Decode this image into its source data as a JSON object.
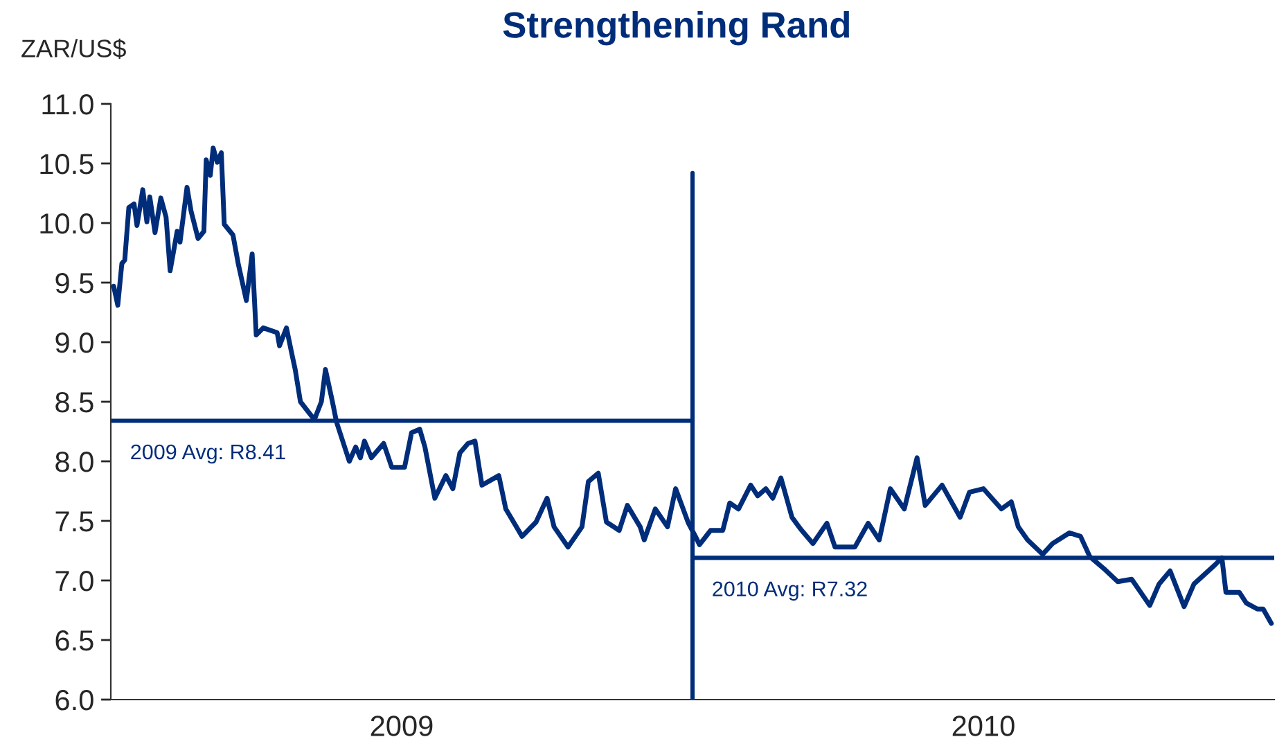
{
  "chart_data": {
    "type": "line",
    "title": "Strengthening Rand",
    "ylabel": "ZAR/US$",
    "xlim": [
      2009.0,
      2011.0
    ],
    "xticks": [
      {
        "value": 2009.5,
        "label": "2009"
      },
      {
        "value": 2010.5,
        "label": "2010"
      }
    ],
    "ylim": [
      6.0,
      11.0
    ],
    "yticks": [
      {
        "value": 6.0,
        "label": "6.0"
      },
      {
        "value": 6.5,
        "label": "6.5"
      },
      {
        "value": 7.0,
        "label": "7.0"
      },
      {
        "value": 7.5,
        "label": "7.5"
      },
      {
        "value": 8.0,
        "label": "8.0"
      },
      {
        "value": 8.5,
        "label": "8.5"
      },
      {
        "value": 9.0,
        "label": "9.0"
      },
      {
        "value": 9.5,
        "label": "9.5"
      },
      {
        "value": 10.0,
        "label": "10.0"
      },
      {
        "value": 10.5,
        "label": "10.5"
      },
      {
        "value": 11.0,
        "label": "11.0"
      }
    ],
    "grid": false,
    "legend": false,
    "marker": "none",
    "line_style": "solid",
    "series": [
      {
        "color": "#002d7a",
        "x": [
          2009.005,
          2009.012,
          2009.019,
          2009.024,
          2009.031,
          2009.04,
          2009.045,
          2009.055,
          2009.062,
          2009.067,
          2009.076,
          2009.086,
          2009.095,
          2009.102,
          2009.114,
          2009.119,
          2009.131,
          2009.138,
          2009.15,
          2009.16,
          2009.164,
          2009.171,
          2009.176,
          2009.183,
          2009.19,
          2009.195,
          2009.21,
          2009.219,
          2009.233,
          2009.243,
          2009.25,
          2009.262,
          2009.286,
          2009.29,
          2009.302,
          2009.31,
          2009.317,
          2009.326,
          2009.35,
          2009.362,
          2009.369,
          2009.381,
          2009.388,
          2009.41,
          2009.421,
          2009.429,
          2009.436,
          2009.448,
          2009.469,
          2009.483,
          2009.505,
          2009.517,
          2009.531,
          2009.54,
          2009.557,
          2009.576,
          2009.588,
          2009.6,
          2009.614,
          2009.626,
          2009.638,
          2009.667,
          2009.679,
          2009.707,
          2009.731,
          2009.75,
          2009.762,
          2009.786,
          2009.81,
          2009.821,
          2009.838,
          2009.852,
          2009.874,
          2009.888,
          2009.91,
          2009.917,
          2009.936,
          2009.957,
          2009.971,
          2009.993,
          2010.005,
          2010.012,
          2010.031,
          2010.052,
          2010.064,
          2010.079,
          2010.1,
          2010.112,
          2010.126,
          2010.138,
          2010.152,
          2010.171,
          2010.186,
          2010.207,
          2010.231,
          2010.245,
          2010.279,
          2010.302,
          2010.321,
          2010.34,
          2010.364,
          2010.386,
          2010.4,
          2010.429,
          2010.46,
          2010.476,
          2010.5,
          2010.531,
          2010.548,
          2010.56,
          2010.576,
          2010.602,
          2010.619,
          2010.648,
          2010.667,
          2010.683,
          2010.707,
          2010.731,
          2010.755,
          2010.786,
          2010.802,
          2010.821,
          2010.845,
          2010.862,
          2010.898,
          2010.91,
          2010.917,
          2010.94,
          2010.952,
          2010.971,
          2010.981,
          2010.995
        ],
        "values": [
          9.47,
          9.31,
          9.66,
          9.69,
          10.13,
          10.16,
          9.98,
          10.28,
          10.01,
          10.22,
          9.92,
          10.21,
          10.05,
          9.6,
          9.93,
          9.84,
          10.3,
          10.1,
          9.87,
          9.93,
          10.53,
          10.4,
          10.63,
          10.51,
          10.59,
          9.99,
          9.9,
          9.66,
          9.35,
          9.74,
          9.06,
          9.12,
          9.08,
          8.97,
          9.12,
          8.93,
          8.77,
          8.5,
          8.35,
          8.5,
          8.77,
          8.5,
          8.33,
          8.0,
          8.12,
          8.03,
          8.17,
          8.03,
          8.15,
          7.95,
          7.95,
          8.24,
          8.27,
          8.12,
          7.69,
          7.88,
          7.77,
          8.07,
          8.15,
          8.17,
          7.8,
          7.88,
          7.6,
          7.37,
          7.49,
          7.69,
          7.45,
          7.28,
          7.45,
          7.83,
          7.9,
          7.49,
          7.42,
          7.63,
          7.45,
          7.34,
          7.6,
          7.45,
          7.77,
          7.48,
          7.37,
          7.3,
          7.42,
          7.42,
          7.65,
          7.6,
          7.8,
          7.71,
          7.77,
          7.69,
          7.86,
          7.53,
          7.43,
          7.31,
          7.48,
          7.28,
          7.28,
          7.48,
          7.34,
          7.77,
          7.6,
          8.03,
          7.63,
          7.8,
          7.53,
          7.74,
          7.77,
          7.6,
          7.66,
          7.45,
          7.34,
          7.22,
          7.31,
          7.4,
          7.37,
          7.2,
          7.1,
          6.99,
          7.01,
          6.79,
          6.97,
          7.08,
          6.78,
          6.97,
          7.13,
          7.19,
          6.9,
          6.9,
          6.81,
          6.76,
          6.76,
          6.64
        ]
      },
      {
        "name": "2009 Avg: R8.41",
        "color": "#002d7a",
        "x": [
          2009.0,
          2010.0
        ],
        "values": [
          8.34,
          8.34
        ]
      },
      {
        "name": "2010 Avg: R7.32",
        "color": "#002d7a",
        "x": [
          2010.0,
          2011.0
        ],
        "values": [
          7.19,
          7.19
        ]
      },
      {
        "color": "#002d7a",
        "x": [
          2010.0,
          2010.0
        ],
        "values": [
          6.0,
          10.42
        ]
      }
    ]
  }
}
